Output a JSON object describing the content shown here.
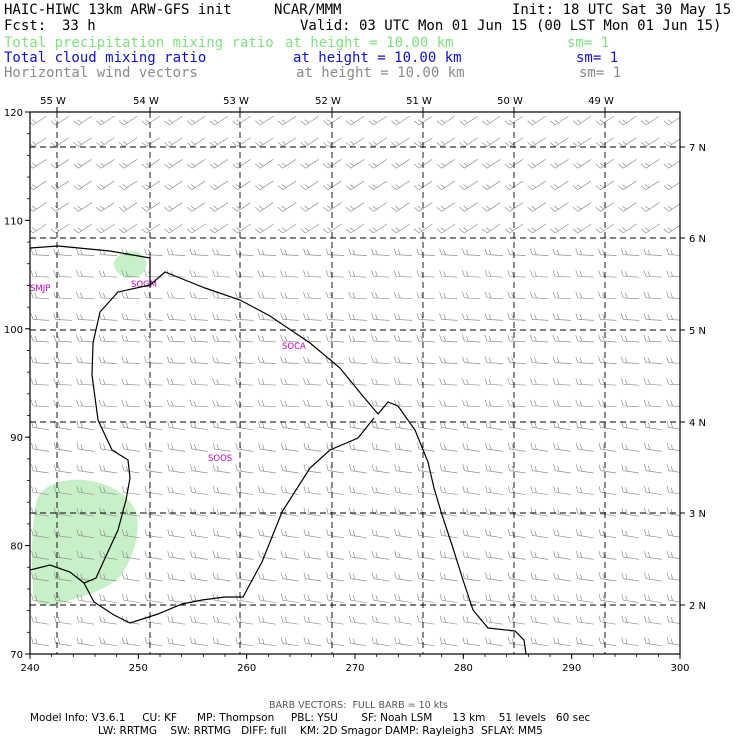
{
  "header": {
    "title_left": "HAIC-HIWC 13km ARW-GFS init",
    "title_mid": "NCAR/MMM",
    "init": "Init: 18 UTC Sat 30 May 15",
    "fcst_label": "Fcst:",
    "fcst_value": "33 h",
    "valid": "Valid: 03 UTC Mon 01 Jun 15 (00 LST Mon 01 Jun 15)"
  },
  "fields": [
    {
      "name": "Total precipitation mixing ratio",
      "height": "at height = 10.00 km",
      "sm": "sm= 1",
      "color": "#7fe07f"
    },
    {
      "name": "Total cloud mixing ratio",
      "height": "at height = 10.00 km",
      "sm": "sm= 1",
      "color": "#1010c8"
    },
    {
      "name": "Horizontal wind vectors",
      "height": "at height = 10.00 km",
      "sm": "sm= 1",
      "color": "#8a8a8a"
    }
  ],
  "map": {
    "x_ticks": [
      240,
      250,
      260,
      270,
      280,
      290,
      300
    ],
    "y_ticks": [
      70,
      80,
      90,
      100,
      110,
      120
    ],
    "lon_labels": [
      "55 W",
      "54 W",
      "53 W",
      "52 W",
      "51 W",
      "50 W",
      "49 W"
    ],
    "lat_labels": [
      "7 N",
      "6 N",
      "5 N",
      "4 N",
      "3 N",
      "2 N"
    ],
    "stations": [
      {
        "id": "SMJP",
        "color": "#c000c0"
      },
      {
        "id": "SOGM",
        "color": "#c000c0"
      },
      {
        "id": "SOCA",
        "color": "#c000c0"
      },
      {
        "id": "SOOS",
        "color": "#c000c0"
      }
    ],
    "precip_color": "#c8f0c8",
    "barb_color": "#909090"
  },
  "footer": {
    "barb_note": "BARB VECTORS:  FULL BARB = 10 kts",
    "model_line1": "Model Info: V3.6.1     CU: KF      MP: Thompson     PBL: YSU       SF: Noah LSM      13 km    51 levels   60 sec",
    "model_line2": "LW: RRTMG    SW: RRTMG   DIFF: full    KM: 2D Smagor DAMP: Rayleigh3  SFLAY: MM5"
  }
}
